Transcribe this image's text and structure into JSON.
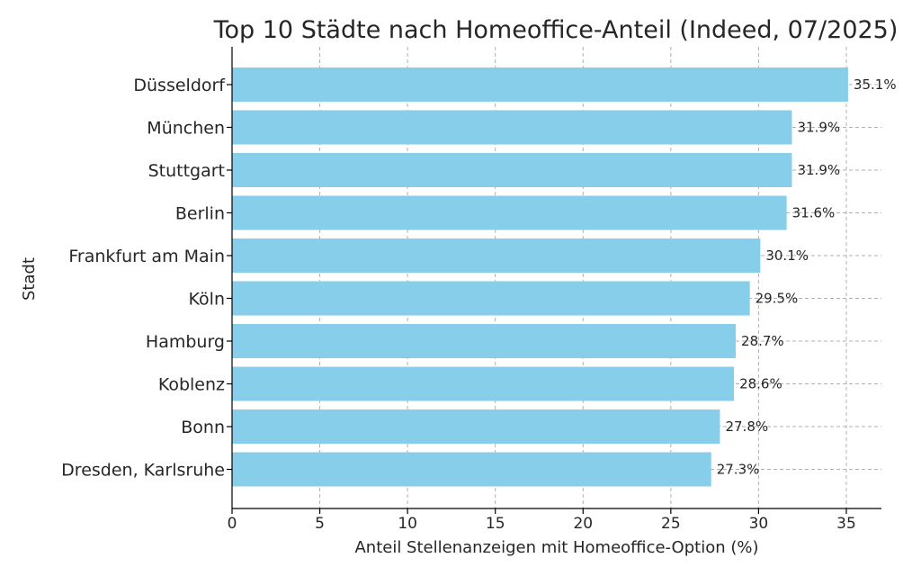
{
  "chart_data": {
    "type": "bar",
    "orientation": "horizontal",
    "title": "Top 10 Städte nach Homeoffice-Anteil (Indeed, 07/2025)",
    "xlabel": "Anteil Stellenanzeigen mit Homeoffice-Option (%)",
    "ylabel": "Stadt",
    "categories": [
      "Düsseldorf",
      "München",
      "Stuttgart",
      "Berlin",
      "Frankfurt am Main",
      "Köln",
      "Hamburg",
      "Koblenz",
      "Bonn",
      "Dresden, Karlsruhe"
    ],
    "values": [
      35.1,
      31.9,
      31.9,
      31.6,
      30.1,
      29.5,
      28.7,
      28.6,
      27.8,
      27.3
    ],
    "value_labels": [
      "35.1%",
      "31.9%",
      "31.9%",
      "31.6%",
      "30.1%",
      "29.5%",
      "28.7%",
      "28.6%",
      "27.8%",
      "27.3%"
    ],
    "xlim": [
      0,
      37
    ],
    "xticks": [
      0,
      5,
      10,
      15,
      20,
      25,
      30,
      35
    ],
    "grid": true,
    "bar_color": "#87CEEB"
  }
}
